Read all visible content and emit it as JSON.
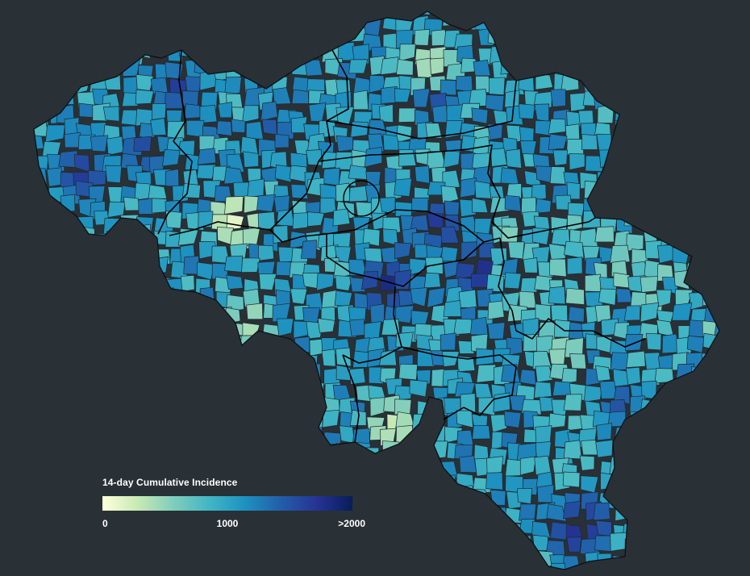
{
  "legend": {
    "title": "14-day Cumulative Incidence",
    "ticks": {
      "min": "0",
      "mid": "1000",
      "max": ">2000"
    },
    "scale": {
      "domain_min": 0,
      "domain_max": 2000,
      "colors": [
        "#ffffd9",
        "#c7e9b4",
        "#7fcdbb",
        "#41b6c4",
        "#1d91c0",
        "#225ea8",
        "#253494",
        "#081d58"
      ]
    }
  },
  "map": {
    "background": "#293036",
    "border_color": "#1f2a30",
    "province_border_color": "#000000"
  }
}
